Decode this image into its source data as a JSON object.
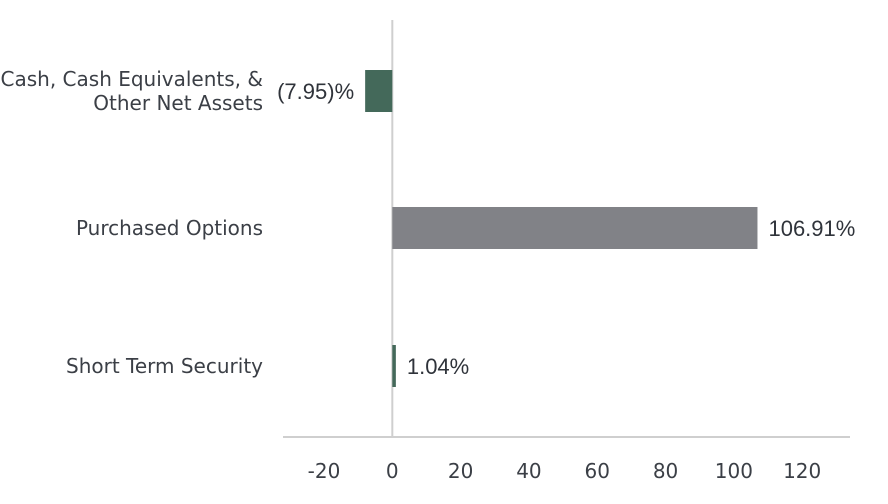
{
  "chart_data": {
    "type": "bar",
    "orientation": "horizontal",
    "categories": [
      [
        "Cash, Cash Equivalents, &",
        "Other Net Assets"
      ],
      [
        "Purchased Options"
      ],
      [
        "Short Term Security"
      ]
    ],
    "values": [
      -7.95,
      106.91,
      1.04
    ],
    "value_labels": [
      "(7.95)%",
      "106.91%",
      "1.04%"
    ],
    "bar_colors": [
      "#44695a",
      "#818287",
      "#44695a"
    ],
    "x_ticks": [
      "-20",
      "0",
      "20",
      "40",
      "60",
      "80",
      "100",
      "120"
    ],
    "x_tick_values": [
      -20,
      0,
      20,
      40,
      60,
      80,
      100,
      120
    ],
    "xlim": [
      -32,
      134
    ],
    "grid": false,
    "legend": "none",
    "title": "",
    "xlabel": "",
    "ylabel": ""
  }
}
